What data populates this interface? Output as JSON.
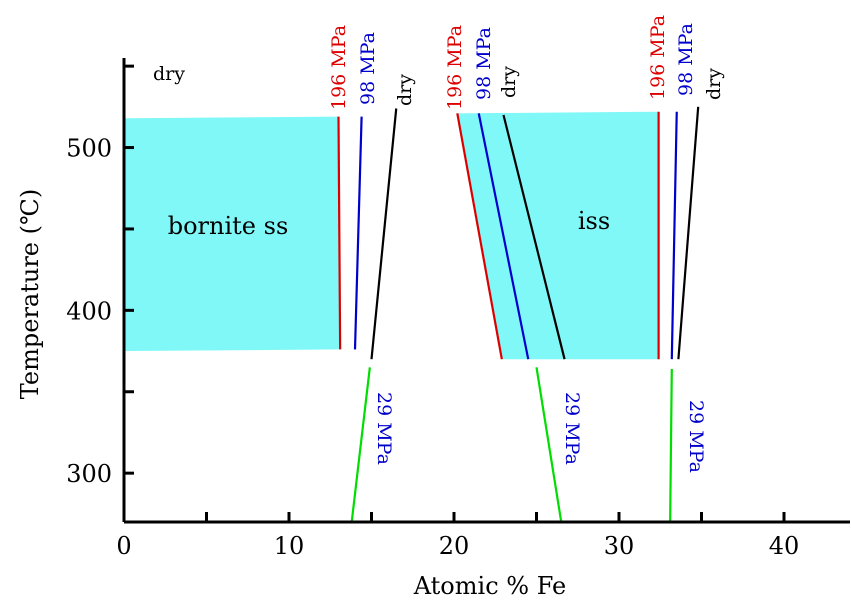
{
  "chart_data": {
    "type": "line",
    "xlabel": "Atomic % Fe",
    "ylabel": "Temperature (℃)",
    "xlim": [
      0,
      44
    ],
    "ylim": [
      270,
      555
    ],
    "x_ticks": [
      0,
      10,
      20,
      30,
      40
    ],
    "y_ticks": [
      300,
      400,
      500
    ],
    "grid": false,
    "regions": [
      {
        "name": "bornite ss",
        "color": "#80f8f8",
        "polygon": [
          [
            0,
            375
          ],
          [
            0,
            518
          ],
          [
            13.0,
            519
          ],
          [
            13.1,
            376
          ]
        ]
      },
      {
        "name": "iss",
        "color": "#80f8f8",
        "polygon": [
          [
            20.2,
            521
          ],
          [
            32.4,
            522
          ],
          [
            32.4,
            370
          ],
          [
            22.9,
            370
          ]
        ]
      }
    ],
    "series": [
      {
        "name": "196 MPa",
        "color": "#dd0000",
        "segments": [
          [
            [
              13.0,
              519
            ],
            [
              13.1,
              376
            ]
          ],
          [
            [
              20.2,
              521
            ],
            [
              22.9,
              370
            ]
          ],
          [
            [
              32.4,
              522
            ],
            [
              32.4,
              370
            ]
          ]
        ]
      },
      {
        "name": "98 MPa",
        "color": "#0000cc",
        "segments": [
          [
            [
              14.4,
              519
            ],
            [
              14.0,
              376
            ]
          ],
          [
            [
              21.5,
              521
            ],
            [
              24.5,
              370
            ]
          ],
          [
            [
              33.5,
              522
            ],
            [
              33.2,
              370
            ]
          ]
        ]
      },
      {
        "name": "dry",
        "color": "#000000",
        "segments": [
          [
            [
              16.5,
              524
            ],
            [
              15.0,
              370
            ]
          ],
          [
            [
              23.0,
              520
            ],
            [
              26.7,
              370
            ]
          ],
          [
            [
              34.8,
              525
            ],
            [
              33.6,
              370
            ]
          ]
        ]
      },
      {
        "name": "29 MPa",
        "color": "#00dd00",
        "segments": [
          [
            [
              14.9,
              365
            ],
            [
              13.8,
              270
            ]
          ],
          [
            [
              25.0,
              365
            ],
            [
              26.5,
              270
            ]
          ],
          [
            [
              33.2,
              364
            ],
            [
              33.1,
              270
            ]
          ]
        ]
      }
    ],
    "annotations": [
      {
        "text": "dry"
      },
      {
        "text": "196 MPa"
      },
      {
        "text": "98 MPa"
      },
      {
        "text": "dry"
      },
      {
        "text": "196 MPa"
      },
      {
        "text": "98 MPa"
      },
      {
        "text": "dry"
      },
      {
        "text": "196 MPa"
      },
      {
        "text": "98 MPa"
      },
      {
        "text": "dry"
      },
      {
        "text": "29 MPa"
      },
      {
        "text": "29 MPa"
      },
      {
        "text": "29 MPa"
      },
      {
        "text": "bornite ss"
      },
      {
        "text": "iss"
      }
    ]
  }
}
